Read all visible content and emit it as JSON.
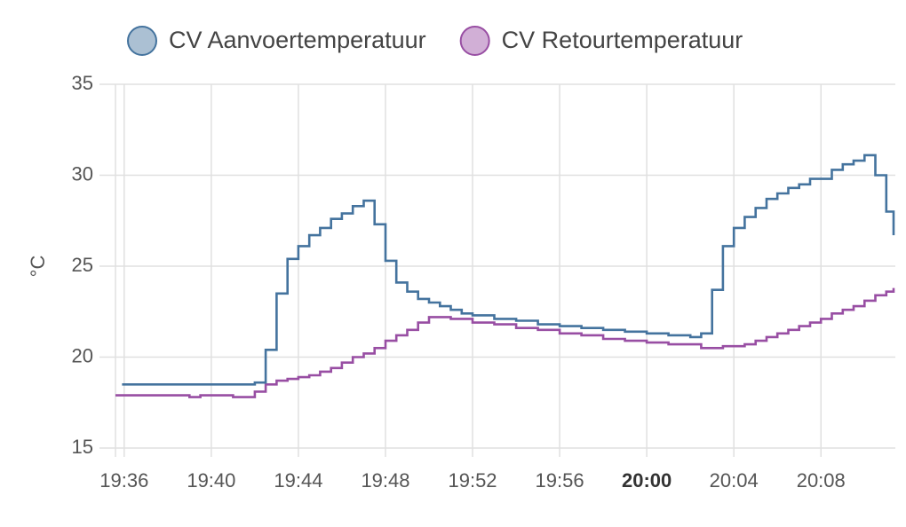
{
  "chart_data": {
    "type": "step-line",
    "ylabel": "°C",
    "ylim": [
      15,
      35
    ],
    "yticks": [
      15,
      20,
      25,
      30,
      35
    ],
    "xlim": [
      "19:35:36",
      "20:11:25"
    ],
    "xticks": [
      "19:36",
      "19:40",
      "19:44",
      "19:48",
      "19:52",
      "19:56",
      "20:00",
      "20:04",
      "20:08"
    ],
    "grid": true,
    "legend": "top",
    "series": [
      {
        "name": "CV Aanvoertemperatuur",
        "color": "#44739e",
        "x": [
          "19:35:54",
          "19:42:00",
          "19:42:30",
          "19:43:00",
          "19:43:30",
          "19:44:00",
          "19:44:30",
          "19:45:00",
          "19:45:30",
          "19:46:00",
          "19:46:30",
          "19:47:00",
          "19:47:30",
          "19:48:00",
          "19:48:30",
          "19:49:00",
          "19:49:30",
          "19:50:00",
          "19:50:30",
          "19:51:00",
          "19:51:30",
          "19:52:00",
          "19:53:00",
          "19:54:00",
          "19:55:00",
          "19:56:00",
          "19:57:00",
          "19:58:00",
          "19:59:00",
          "20:00:00",
          "20:01:00",
          "20:02:00",
          "20:02:30",
          "20:03:00",
          "20:03:30",
          "20:04:00",
          "20:04:30",
          "20:05:00",
          "20:05:30",
          "20:06:00",
          "20:06:30",
          "20:07:00",
          "20:07:30",
          "20:08:00",
          "20:08:30",
          "20:09:00",
          "20:09:30",
          "20:10:00",
          "20:10:30",
          "20:11:00",
          "20:11:20"
        ],
        "values": [
          18.5,
          18.6,
          20.4,
          23.5,
          25.4,
          26.1,
          26.7,
          27.1,
          27.6,
          27.9,
          28.3,
          28.6,
          27.3,
          25.3,
          24.1,
          23.6,
          23.2,
          23.0,
          22.8,
          22.6,
          22.4,
          22.3,
          22.1,
          22.0,
          21.8,
          21.7,
          21.6,
          21.5,
          21.4,
          21.3,
          21.2,
          21.1,
          21.3,
          23.7,
          26.1,
          27.1,
          27.7,
          28.2,
          28.7,
          29.0,
          29.3,
          29.5,
          29.8,
          29.8,
          30.3,
          30.6,
          30.8,
          31.1,
          30.0,
          28.0,
          26.7
        ]
      },
      {
        "name": "CV Retourtemperatuur",
        "color": "#984ea3",
        "x": [
          "19:35:36",
          "19:39:00",
          "19:39:30",
          "19:41:00",
          "19:42:00",
          "19:42:30",
          "19:43:00",
          "19:43:30",
          "19:44:00",
          "19:44:30",
          "19:45:00",
          "19:45:30",
          "19:46:00",
          "19:46:30",
          "19:47:00",
          "19:47:30",
          "19:48:00",
          "19:48:30",
          "19:49:00",
          "19:49:30",
          "19:50:00",
          "19:51:00",
          "19:52:00",
          "19:53:00",
          "19:54:00",
          "19:55:00",
          "19:56:00",
          "19:57:00",
          "19:58:00",
          "19:59:00",
          "20:00:00",
          "20:01:00",
          "20:02:30",
          "20:03:30",
          "20:04:30",
          "20:05:00",
          "20:05:30",
          "20:06:00",
          "20:06:30",
          "20:07:00",
          "20:07:30",
          "20:08:00",
          "20:08:30",
          "20:09:00",
          "20:09:30",
          "20:10:00",
          "20:10:30",
          "20:11:00",
          "20:11:20"
        ],
        "values": [
          17.9,
          17.8,
          17.9,
          17.8,
          18.1,
          18.5,
          18.7,
          18.8,
          18.9,
          19.0,
          19.2,
          19.4,
          19.7,
          20.0,
          20.2,
          20.5,
          20.9,
          21.2,
          21.5,
          21.9,
          22.2,
          22.1,
          21.9,
          21.8,
          21.6,
          21.5,
          21.3,
          21.2,
          21.0,
          20.9,
          20.8,
          20.7,
          20.5,
          20.6,
          20.7,
          20.9,
          21.1,
          21.3,
          21.5,
          21.7,
          21.9,
          22.1,
          22.4,
          22.6,
          22.8,
          23.1,
          23.4,
          23.6,
          23.8
        ]
      }
    ]
  }
}
